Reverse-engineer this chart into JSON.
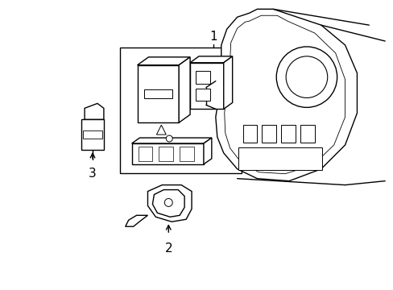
{
  "background_color": "#ffffff",
  "line_color": "#000000",
  "line_width": 1.0,
  "fig_width": 4.89,
  "fig_height": 3.6,
  "dpi": 100,
  "label_1": "1",
  "label_2": "2",
  "label_3": "3"
}
